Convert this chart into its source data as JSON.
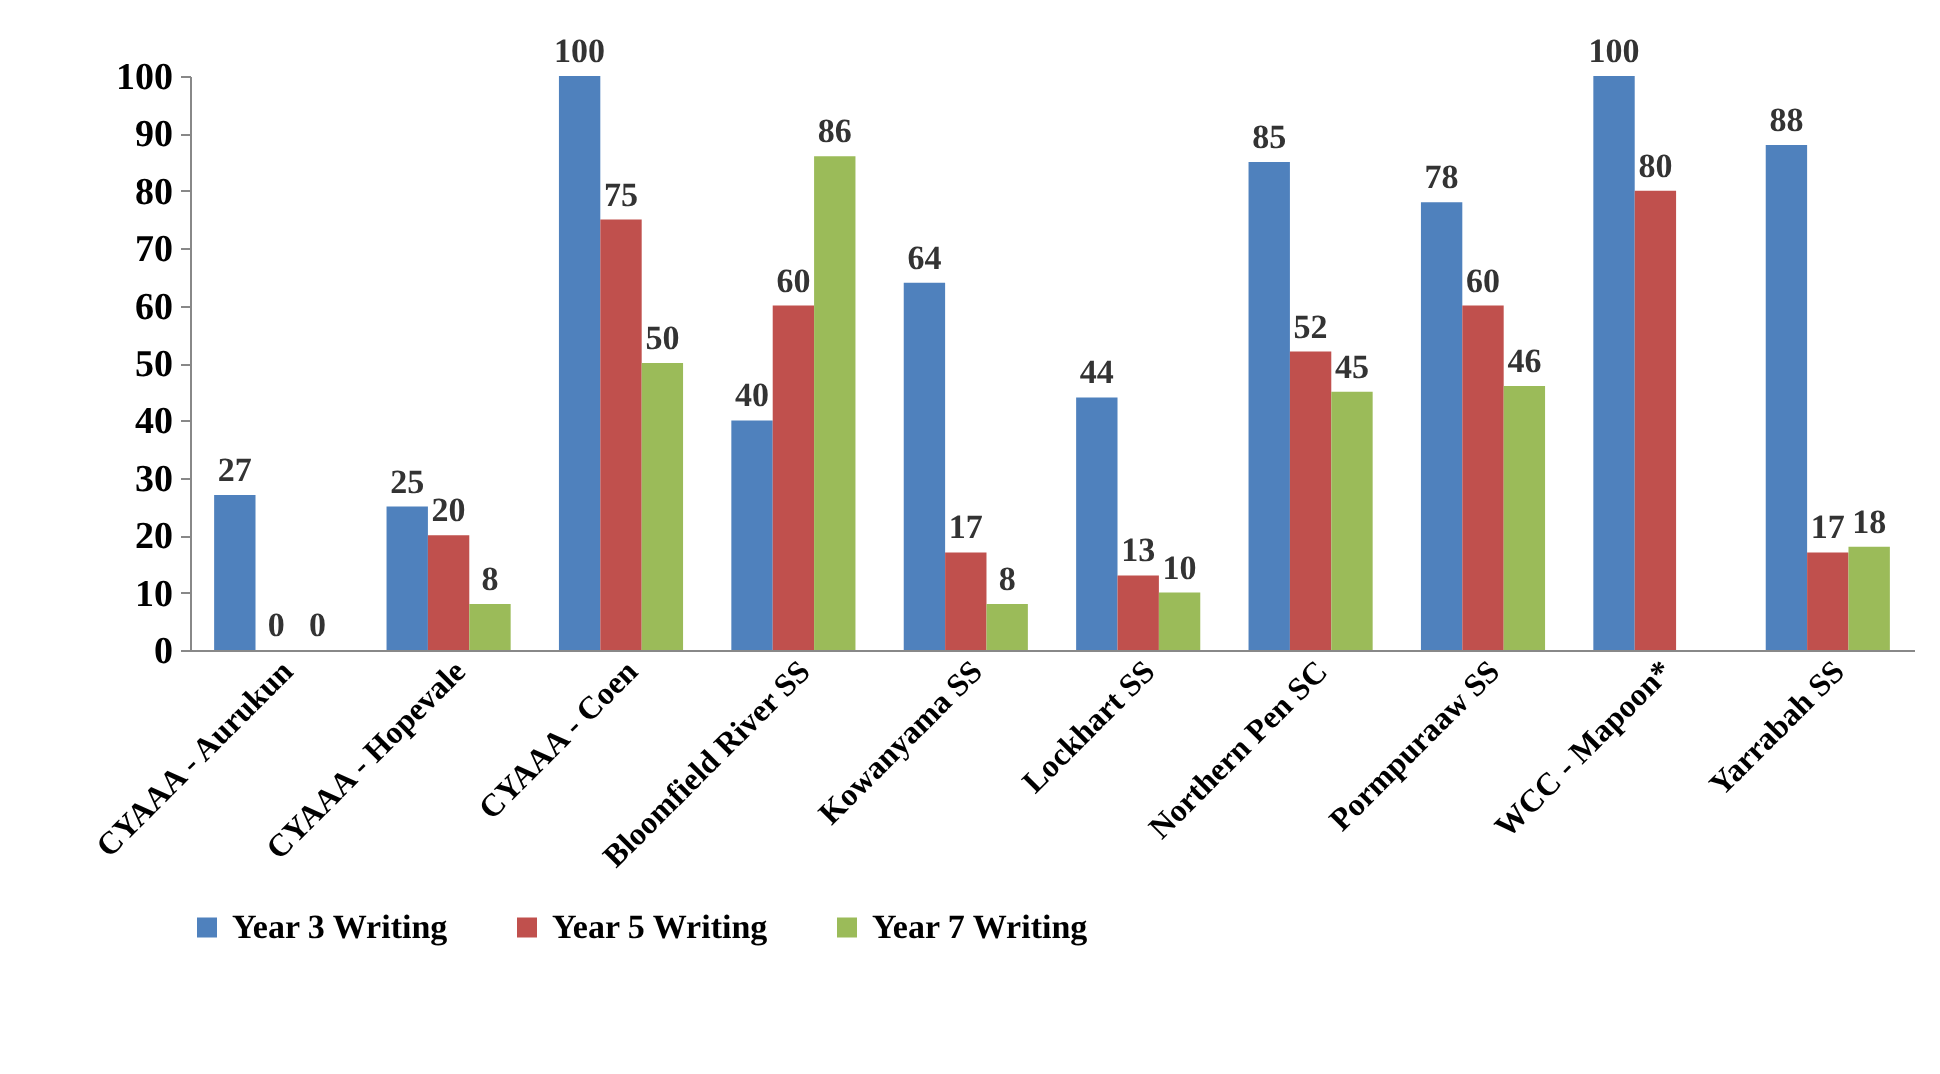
{
  "chart_data": {
    "type": "bar",
    "categories": [
      "CYAAA - Aurukun",
      "CYAAA - Hopevale",
      "CYAAA - Coen",
      "Bloomfield River SS",
      "Kowanyama SS",
      "Lockhart SS",
      "Northern Pen SC",
      "Pormpuraaw SS",
      "WCC - Mapoon*",
      "Yarrabah SS"
    ],
    "series": [
      {
        "name": "Year 3 Writing",
        "color": "#4f81bd",
        "values": [
          27,
          25,
          100,
          40,
          64,
          44,
          85,
          78,
          100,
          88
        ]
      },
      {
        "name": "Year 5 Writing",
        "color": "#c0504d",
        "values": [
          0,
          20,
          75,
          60,
          17,
          13,
          52,
          60,
          80,
          17
        ]
      },
      {
        "name": "Year 7 Writing",
        "color": "#9bbb59",
        "values": [
          0,
          8,
          50,
          86,
          8,
          10,
          45,
          46,
          null,
          18
        ]
      }
    ],
    "ylim": [
      0,
      100
    ],
    "yticks": [
      0,
      10,
      20,
      30,
      40,
      50,
      60,
      70,
      80,
      90,
      100
    ],
    "grid": false,
    "legend": "bottom",
    "data_labels": true
  }
}
